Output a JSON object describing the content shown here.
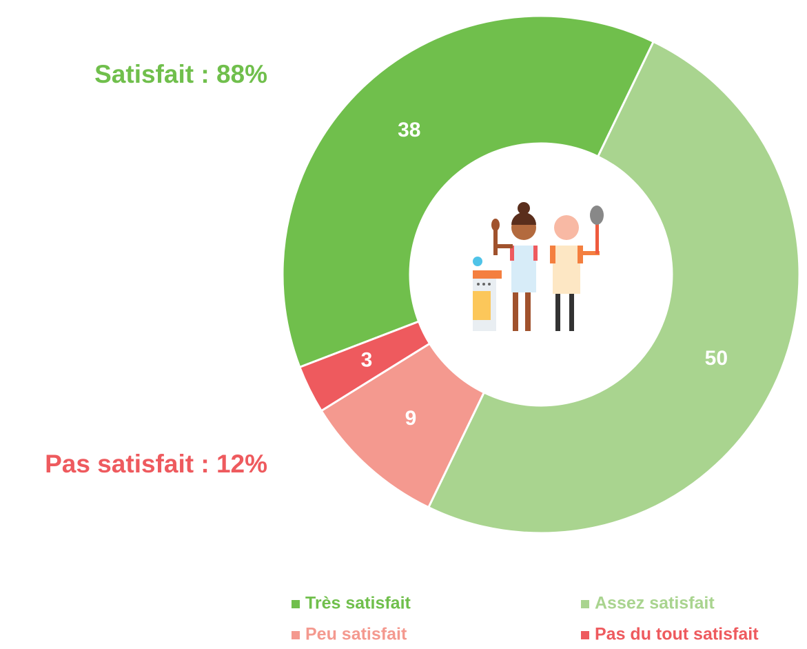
{
  "chart_data": {
    "type": "donut",
    "categories": [
      "Très satisfait",
      "Assez satisfait",
      "Peu satisfait",
      "Pas du tout satisfait"
    ],
    "values": [
      38,
      50,
      9,
      3
    ],
    "colors": [
      "#70bf4c",
      "#a9d48f",
      "#f4998f",
      "#ee5a5e"
    ],
    "annotations": [
      {
        "text": "Satisfait : 88%",
        "color": "#70bf4c"
      },
      {
        "text": "Pas satisfait : 12%",
        "color": "#ee5a5e"
      }
    ],
    "legend": "bottom"
  }
}
